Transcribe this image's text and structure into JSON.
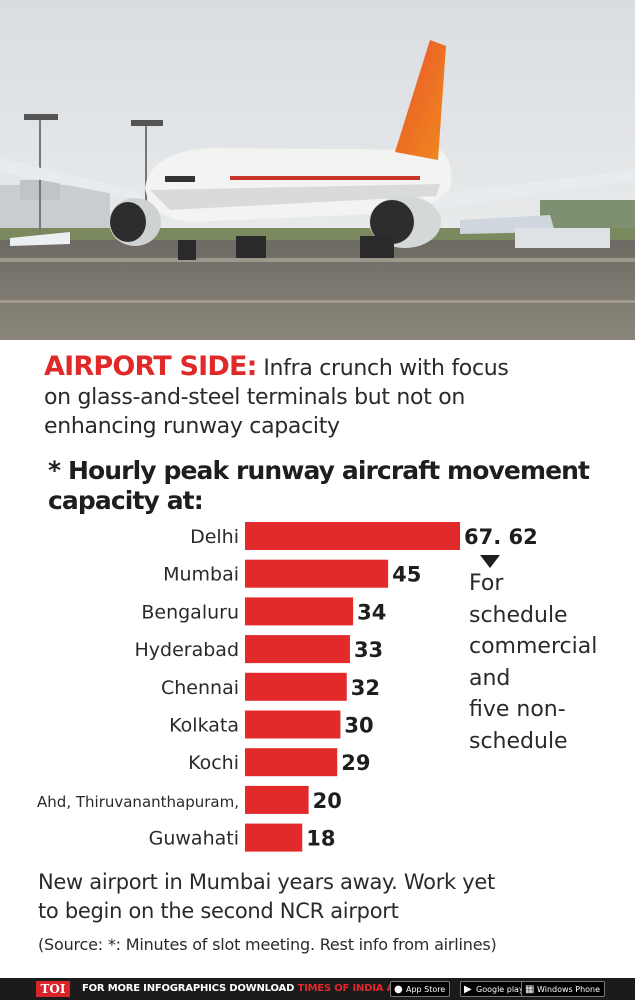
{
  "header": {
    "kicker": "AIRPORT SIDE:",
    "text_l1": " Infra crunch with focus",
    "text_l2": "on glass-and-steel terminals but not on",
    "text_l3": "enhancing runway capacity"
  },
  "chart_data": {
    "type": "bar",
    "orientation": "horizontal",
    "title_l1": "* Hourly peak runway aircraft movement",
    "title_l2": "capacity at:",
    "categories": [
      "Delhi",
      "Mumbai",
      "Bengaluru",
      "Hyderabad",
      "Chennai",
      "Kolkata",
      "Kochi",
      "Ahd, Thiruvananthapuram,",
      "Guwahati"
    ],
    "values": [
      67.62,
      45,
      34,
      33,
      32,
      30,
      29,
      20,
      18
    ],
    "value_labels": [
      "67. 62",
      "45",
      "34",
      "33",
      "32",
      "30",
      "29",
      "20",
      "18"
    ],
    "bar_color": "#e22a2b",
    "annotation_lines": [
      "For",
      "schedule",
      "commercial",
      "and",
      "five non-",
      "schedule"
    ]
  },
  "footer": {
    "line1": "New airport in Mumbai years away. Work yet",
    "line2": "to begin on the second NCR airport",
    "source": "(Source: *: Minutes of slot meeting. Rest info from airlines)"
  },
  "bottom_bar": {
    "logo": "TOI",
    "promo_prefix": "FOR MORE  INFOGRAPHICS DOWNLOAD ",
    "promo_app": "TIMES OF INDIA  APP",
    "app_store": "App Store",
    "google_play": "Google play",
    "windows": "Windows Phone"
  },
  "colors": {
    "accent": "#e02a2a",
    "bar": "#e22a2b",
    "bottom_bar": "#1b1b1b"
  }
}
